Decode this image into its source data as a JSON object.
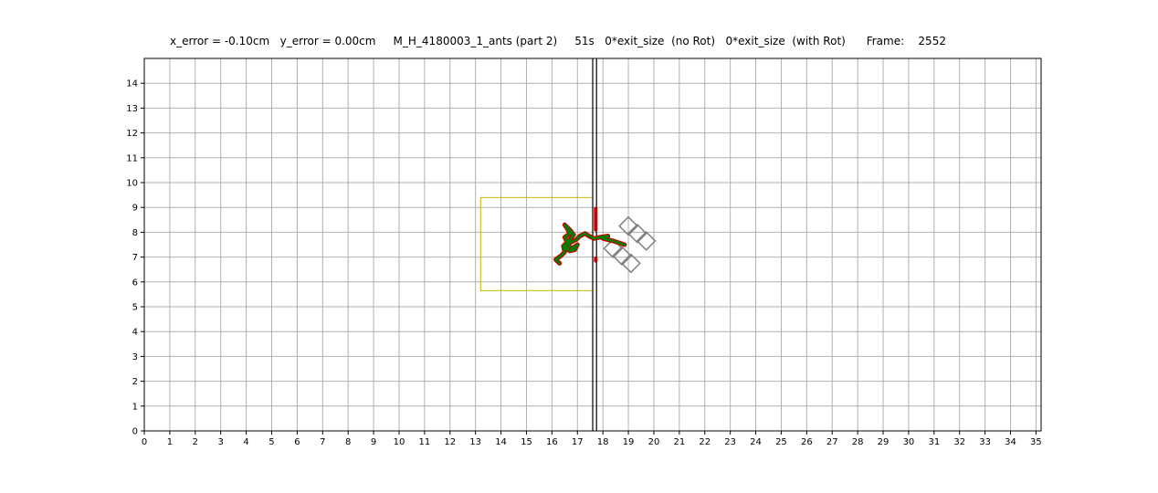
{
  "header": {
    "x_error": "x_error = -0.10cm",
    "y_error": "y_error = 0.00cm",
    "experiment": "M_H_4180003_1_ants (part 2)",
    "time": "51s",
    "exit_no_rot": "0*exit_size  (no Rot)",
    "exit_with_rot": "0*exit_size  (with Rot)",
    "frame_label": "Frame:",
    "frame_value": "2552"
  },
  "chart_data": {
    "type": "line",
    "xlim": [
      0,
      35.2
    ],
    "ylim": [
      0,
      15
    ],
    "xticks": [
      "0",
      "1",
      "2",
      "3",
      "4",
      "5",
      "6",
      "7",
      "8",
      "9",
      "10",
      "11",
      "12",
      "13",
      "14",
      "15",
      "16",
      "17",
      "18",
      "19",
      "20",
      "21",
      "22",
      "23",
      "24",
      "25",
      "26",
      "27",
      "28",
      "29",
      "30",
      "31",
      "32",
      "33",
      "34",
      "35"
    ],
    "yticks": [
      "0",
      "1",
      "2",
      "3",
      "4",
      "5",
      "6",
      "7",
      "8",
      "9",
      "10",
      "11",
      "12",
      "13",
      "14"
    ],
    "grid": true,
    "colors": {
      "grid": "#b0b0b0",
      "wall": "#000000",
      "zone": "#c8b400",
      "load": "#808080",
      "trail_outer": "#cc0000",
      "trail_inner": "#008000",
      "slit_marker": "#cc0000"
    },
    "wall_x": [
      17.6,
      17.75
    ],
    "zone_rect": {
      "x0": 13.2,
      "x1": 17.6,
      "y0": 5.65,
      "y1": 9.4
    },
    "slit_markers": [
      {
        "x": 17.72,
        "y0": 8.1,
        "y1": 8.95
      },
      {
        "x": 17.72,
        "y0": 6.85,
        "y1": 6.95
      }
    ],
    "load_squares": [
      {
        "cx": 19.0,
        "cy": 8.25
      },
      {
        "cx": 19.35,
        "cy": 7.95
      },
      {
        "cx": 19.7,
        "cy": 7.65
      },
      {
        "cx": 18.4,
        "cy": 7.35
      },
      {
        "cx": 18.75,
        "cy": 7.05
      },
      {
        "cx": 19.1,
        "cy": 6.75
      }
    ],
    "load_square_size": 0.5,
    "trajectory": [
      [
        16.3,
        6.75
      ],
      [
        16.15,
        6.9
      ],
      [
        16.35,
        7.05
      ],
      [
        16.5,
        7.2
      ],
      [
        16.45,
        7.45
      ],
      [
        16.6,
        7.6
      ],
      [
        16.5,
        7.8
      ],
      [
        16.7,
        7.95
      ],
      [
        16.6,
        8.15
      ],
      [
        16.5,
        8.3
      ],
      [
        16.7,
        8.1
      ],
      [
        16.85,
        7.9
      ],
      [
        16.7,
        7.7
      ],
      [
        16.55,
        7.5
      ],
      [
        16.8,
        7.35
      ],
      [
        17.0,
        7.5
      ],
      [
        16.9,
        7.3
      ],
      [
        16.7,
        7.25
      ],
      [
        16.5,
        7.4
      ],
      [
        16.75,
        7.6
      ],
      [
        16.95,
        7.7
      ],
      [
        17.1,
        7.85
      ],
      [
        17.3,
        7.95
      ],
      [
        17.45,
        7.85
      ],
      [
        17.65,
        7.75
      ],
      [
        17.9,
        7.8
      ],
      [
        18.2,
        7.85
      ],
      [
        18.0,
        7.75
      ],
      [
        18.4,
        7.65
      ],
      [
        18.85,
        7.5
      ]
    ]
  }
}
